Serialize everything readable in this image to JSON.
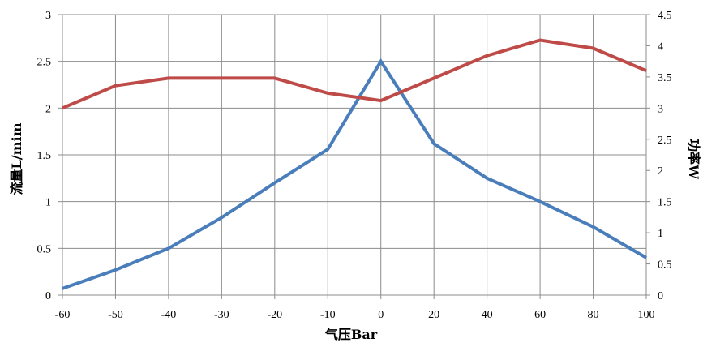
{
  "chart_data": {
    "type": "line",
    "categories": [
      "-60",
      "-50",
      "-40",
      "-30",
      "-20",
      "-10",
      "0",
      "20",
      "40",
      "60",
      "80",
      "100"
    ],
    "xlabel": "气压Bar",
    "ylabel": "流量L/mim",
    "y2label": "功率W",
    "ylim": [
      0,
      3
    ],
    "yticks": [
      "0",
      "0.5",
      "1",
      "1.5",
      "2",
      "2.5",
      "3"
    ],
    "y2lim": [
      0,
      4.5
    ],
    "y2ticks": [
      "0",
      "0.5",
      "1",
      "1.5",
      "2",
      "2.5",
      "3",
      "3.5",
      "4",
      "4.5"
    ],
    "grid": true,
    "legend": "none",
    "series": [
      {
        "axis": "left",
        "color": "#4a7ebb",
        "values": [
          0.07,
          0.27,
          0.5,
          0.83,
          1.2,
          1.56,
          2.5,
          1.62,
          1.25,
          1.0,
          0.73,
          0.4
        ]
      },
      {
        "axis": "right",
        "color": "#be4b48",
        "values": [
          3.0,
          3.36,
          3.48,
          3.48,
          3.48,
          3.24,
          3.12,
          3.48,
          3.84,
          4.09,
          3.96,
          3.6
        ]
      }
    ]
  }
}
